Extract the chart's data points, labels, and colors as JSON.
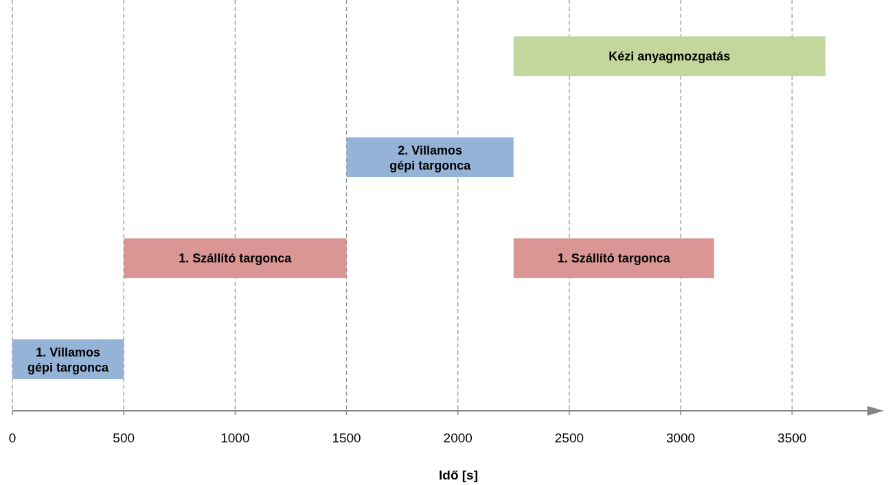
{
  "chart_data": {
    "type": "bar",
    "orientation": "horizontal",
    "xlabel": "Idő [s]",
    "categories": [
      null,
      null,
      null,
      null
    ],
    "series": [
      {
        "name": "Kézi anyagmozgatás",
        "color": "#c3d69b",
        "base": [
          2250,
          null,
          null,
          null
        ],
        "values": [
          1400,
          null,
          null,
          null
        ]
      },
      {
        "name": "2. Villamos gépi targonca",
        "color": "#95b3d7",
        "base": [
          null,
          1500,
          null,
          null
        ],
        "values": [
          null,
          750,
          null,
          null
        ]
      },
      {
        "name": "1. Szállító targonca",
        "color": "#d99694",
        "base": [
          null,
          null,
          500,
          null
        ],
        "values": [
          null,
          null,
          1000,
          null
        ]
      },
      {
        "name": "1. Szállító targonca",
        "color": "#d99694",
        "base": [
          null,
          null,
          2250,
          null
        ],
        "values": [
          null,
          null,
          900,
          null
        ]
      },
      {
        "name": "1. Villamos gépi targonca",
        "color": "#95b3d7",
        "base": [
          null,
          null,
          null,
          0
        ],
        "values": [
          null,
          null,
          null,
          500
        ]
      }
    ],
    "xlim": [
      0,
      3900
    ],
    "xticks": [
      0,
      500,
      1000,
      1500,
      2000,
      2500,
      3000,
      3500
    ],
    "grid": "x",
    "tick_labels": "x"
  }
}
